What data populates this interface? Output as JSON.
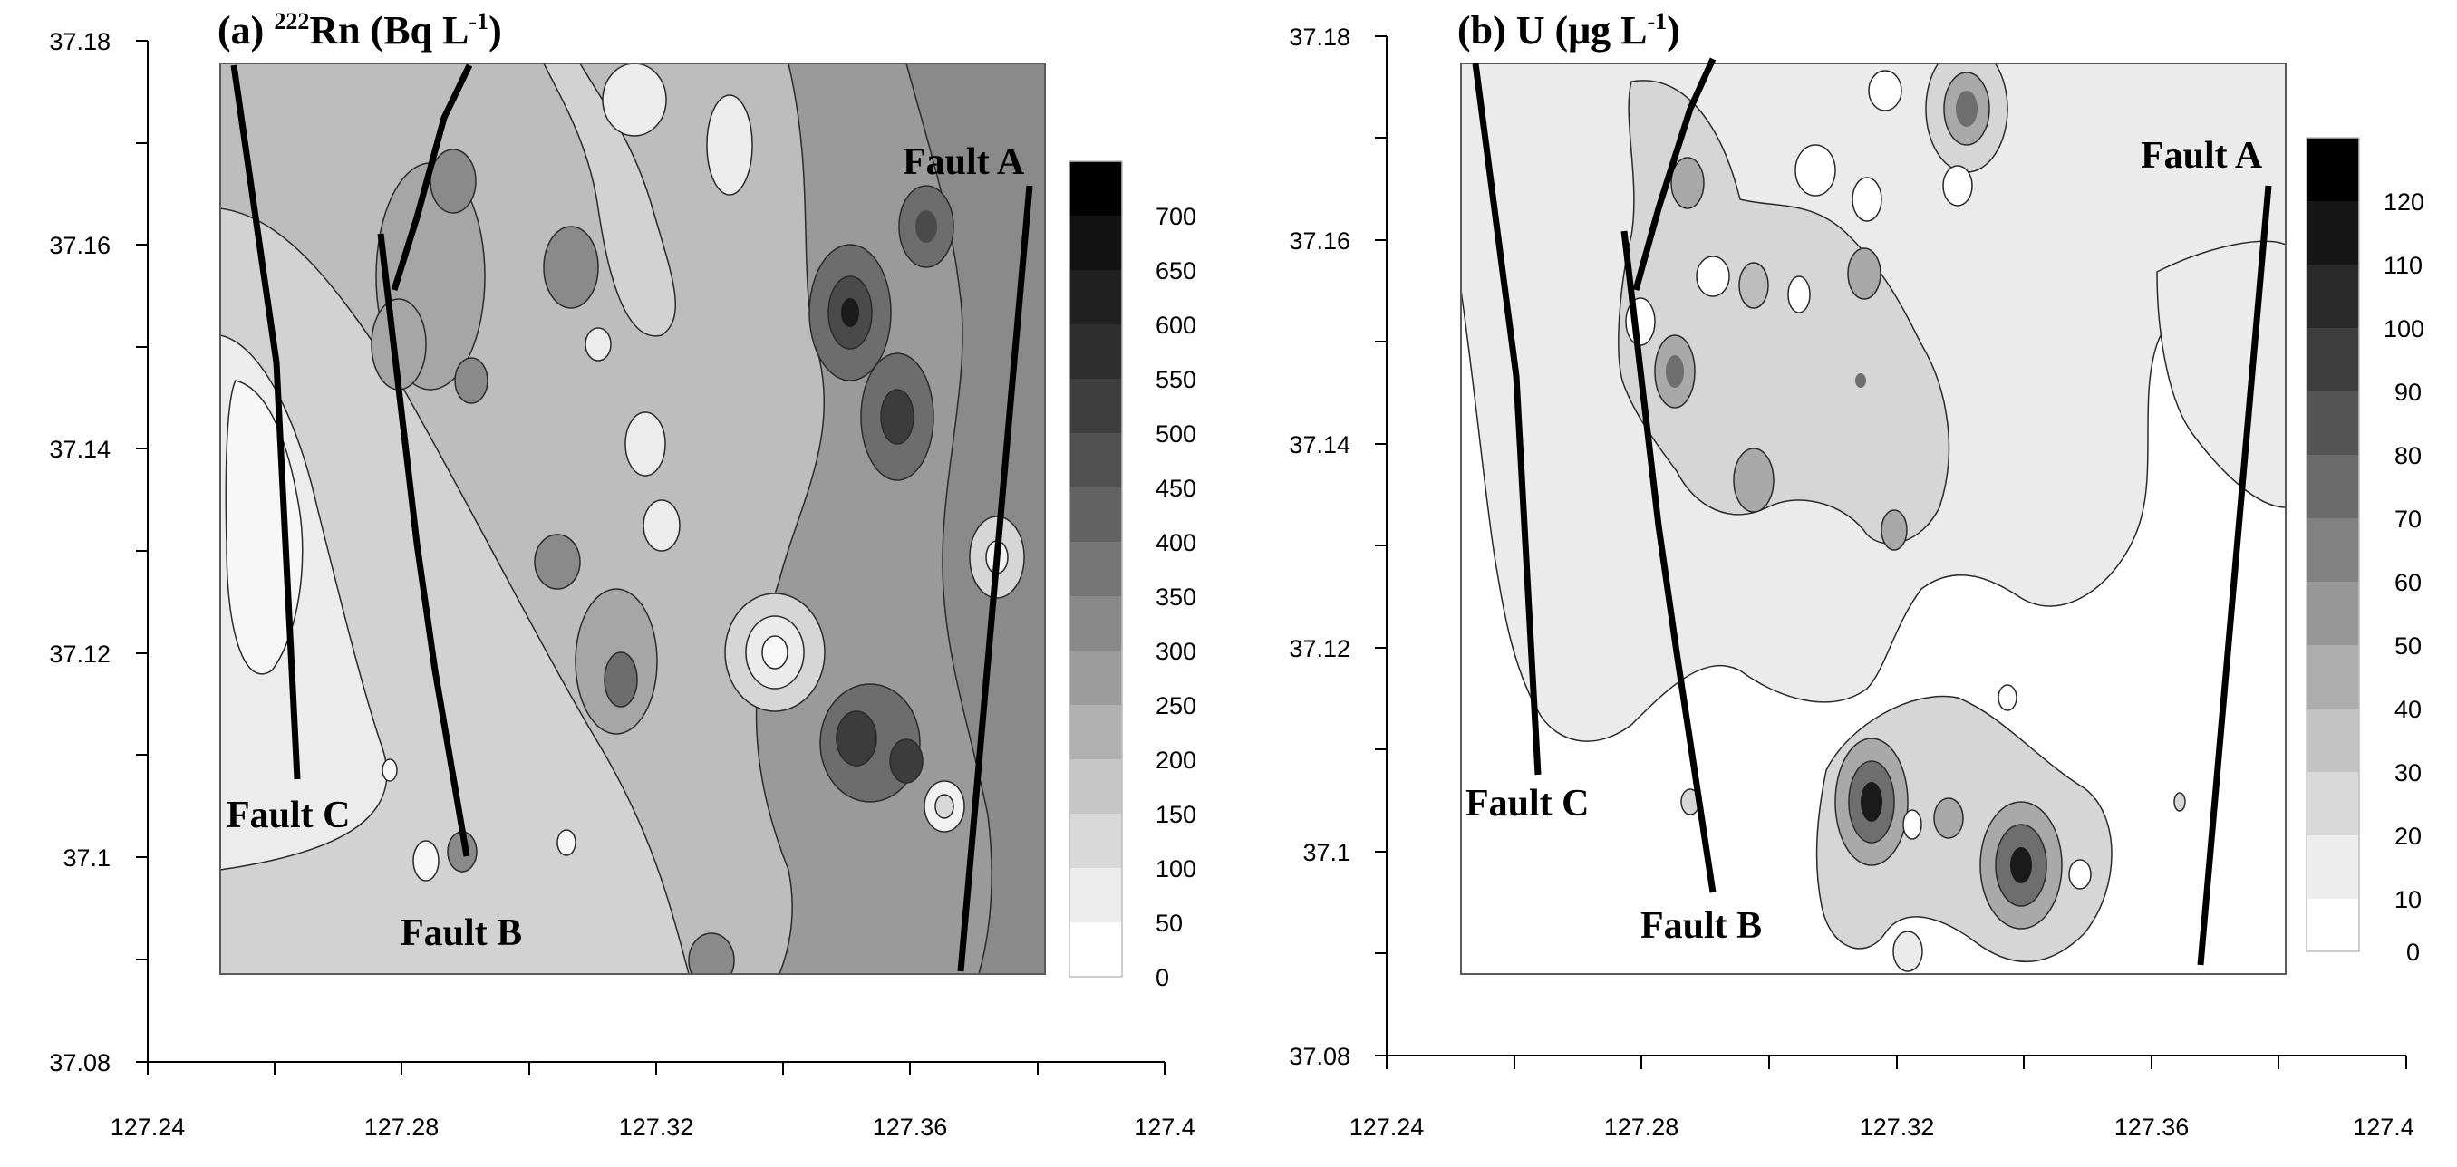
{
  "figure": {
    "panels": [
      {
        "id": "a",
        "title_prefix": "(a) ",
        "title_sup1": "222",
        "title_main": "Rn (Bq L",
        "title_sup2": "-1",
        "title_close": ")",
        "variable": "222Rn",
        "unit": "Bq L-1",
        "y_ticks": [
          "37.18",
          "37.16",
          "37.14",
          "37.12",
          "37.1",
          "37.08"
        ],
        "x_ticks": [
          "127.24",
          "127.28",
          "127.32",
          "127.36",
          "127.4"
        ],
        "legend_levels": [
          "700",
          "650",
          "600",
          "550",
          "500",
          "450",
          "400",
          "350",
          "300",
          "250",
          "200",
          "150",
          "100",
          "50",
          "0"
        ],
        "faults": [
          "Fault A",
          "Fault B",
          "Fault C"
        ]
      },
      {
        "id": "b",
        "title_prefix": "(b) U (",
        "title_mu": "μg L",
        "title_sup2": "-1",
        "title_close": ")",
        "variable": "U",
        "unit": "μg L-1",
        "y_ticks": [
          "37.18",
          "37.16",
          "37.14",
          "37.12",
          "37.1",
          "37.08"
        ],
        "x_ticks": [
          "127.24",
          "127.28",
          "127.32",
          "127.36",
          "127.4"
        ],
        "legend_levels": [
          "120",
          "110",
          "100",
          "90",
          "80",
          "70",
          "60",
          "50",
          "40",
          "30",
          "20",
          "10",
          "0"
        ],
        "faults": [
          "Fault A",
          "Fault B",
          "Fault C"
        ]
      }
    ],
    "colors": {
      "axis": "#000000",
      "fault_line": "#000000",
      "contour_line": "#2a2a2a"
    }
  }
}
